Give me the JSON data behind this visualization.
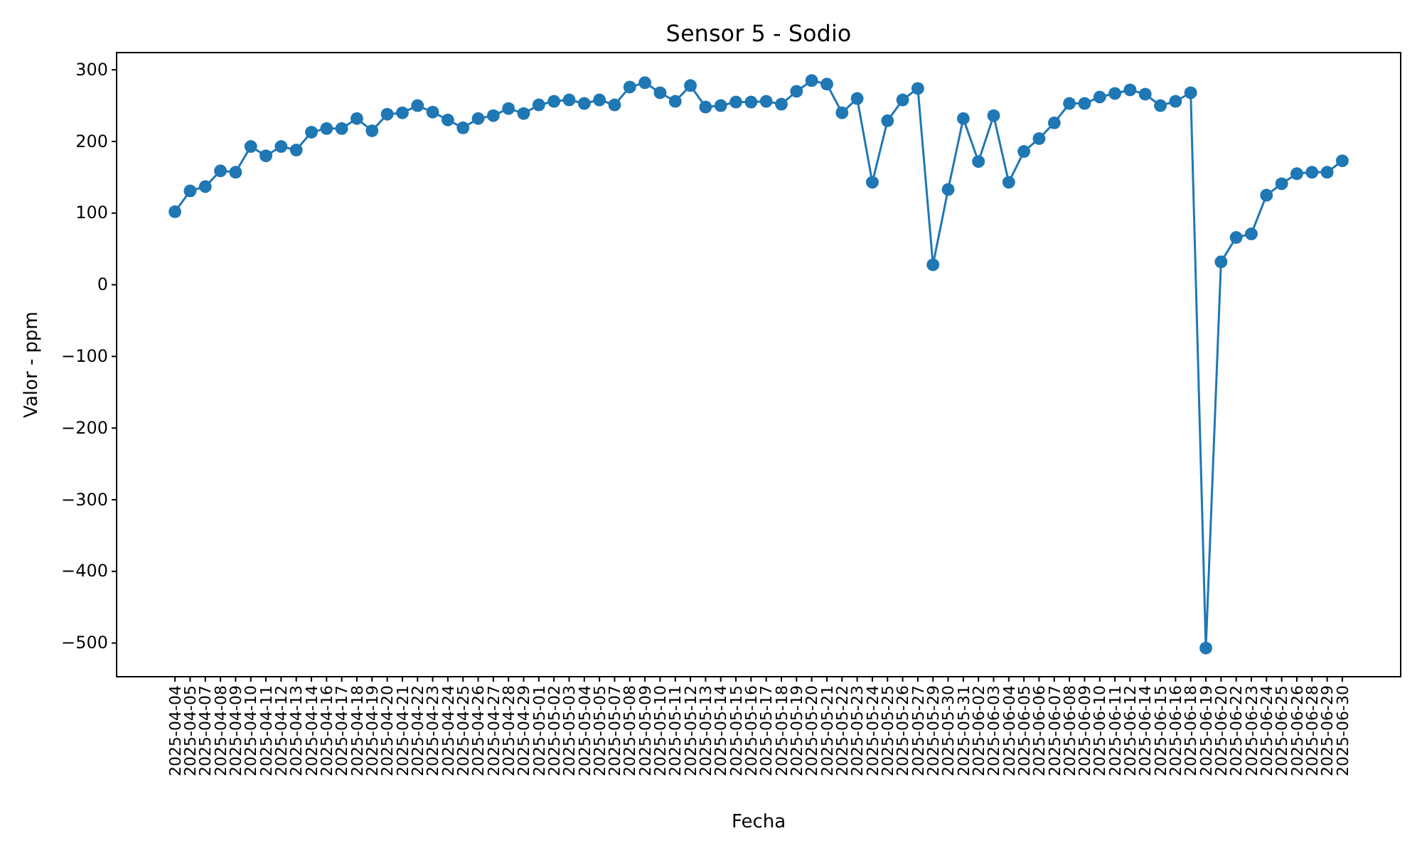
{
  "chart_data": {
    "type": "line",
    "title": "Sensor 5 - Sodio",
    "xlabel": "Fecha",
    "ylabel": "Valor - ppm",
    "categories": [
      "2025-04-04",
      "2025-04-05",
      "2025-04-07",
      "2025-04-08",
      "2025-04-09",
      "2025-04-10",
      "2025-04-11",
      "2025-04-12",
      "2025-04-13",
      "2025-04-14",
      "2025-04-16",
      "2025-04-17",
      "2025-04-18",
      "2025-04-19",
      "2025-04-20",
      "2025-04-21",
      "2025-04-22",
      "2025-04-23",
      "2025-04-24",
      "2025-04-25",
      "2025-04-26",
      "2025-04-27",
      "2025-04-28",
      "2025-04-29",
      "2025-05-01",
      "2025-05-02",
      "2025-05-03",
      "2025-05-04",
      "2025-05-05",
      "2025-05-07",
      "2025-05-08",
      "2025-05-09",
      "2025-05-10",
      "2025-05-11",
      "2025-05-12",
      "2025-05-13",
      "2025-05-14",
      "2025-05-15",
      "2025-05-16",
      "2025-05-17",
      "2025-05-18",
      "2025-05-19",
      "2025-05-20",
      "2025-05-21",
      "2025-05-22",
      "2025-05-23",
      "2025-05-24",
      "2025-05-25",
      "2025-05-26",
      "2025-05-27",
      "2025-05-29",
      "2025-05-30",
      "2025-05-31",
      "2025-06-02",
      "2025-06-03",
      "2025-06-04",
      "2025-06-05",
      "2025-06-06",
      "2025-06-07",
      "2025-06-08",
      "2025-06-09",
      "2025-06-10",
      "2025-06-11",
      "2025-06-12",
      "2025-06-14",
      "2025-06-15",
      "2025-06-16",
      "2025-06-18",
      "2025-06-19",
      "2025-06-20",
      "2025-06-22",
      "2025-06-23",
      "2025-06-24",
      "2025-06-25",
      "2025-06-26",
      "2025-06-28",
      "2025-06-29",
      "2025-06-30"
    ],
    "series": [
      {
        "color": "#1f77b4",
        "values": [
          102,
          131,
          137,
          159,
          157,
          193,
          180,
          193,
          188,
          213,
          218,
          218,
          232,
          215,
          238,
          240,
          250,
          241,
          230,
          219,
          232,
          236,
          246,
          239,
          251,
          256,
          258,
          253,
          258,
          251,
          276,
          282,
          268,
          256,
          278,
          248,
          250,
          255,
          255,
          256,
          252,
          270,
          285,
          280,
          240,
          260,
          143,
          229,
          258,
          274,
          28,
          133,
          232,
          172,
          236,
          143,
          186,
          204,
          226,
          253,
          253,
          262,
          267,
          272,
          266,
          250,
          256,
          268,
          -507,
          32,
          66,
          71,
          125,
          141,
          155,
          157,
          157,
          173
        ]
      }
    ],
    "ylim": [
      -547,
      324
    ],
    "yticks": [
      {
        "value": -500,
        "label": "−500"
      },
      {
        "value": -400,
        "label": "−400"
      },
      {
        "value": -300,
        "label": "−300"
      },
      {
        "value": -200,
        "label": "−200"
      },
      {
        "value": -100,
        "label": "−100"
      },
      0,
      100,
      200,
      300
    ],
    "marker": "circle",
    "grid": false
  }
}
